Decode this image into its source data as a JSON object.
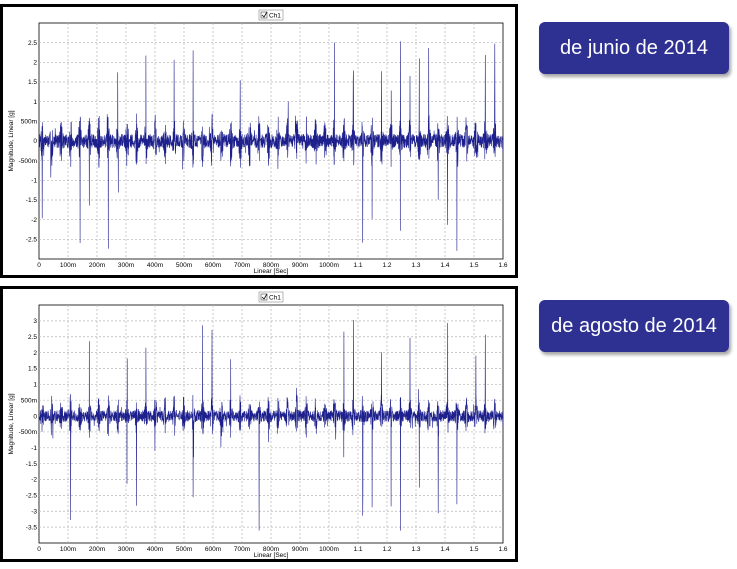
{
  "colors": {
    "signal": "#1c1f8c",
    "label_bg": "#2f3192",
    "grid": "#b5b5b5",
    "frame": "#000000"
  },
  "chart_data": [
    {
      "type": "line",
      "legend": "Ch1",
      "legend_placement": "top-center",
      "xlabel": "Linear [Sec]",
      "ylabel": "Magnitude, Linear [g]",
      "grid": true,
      "xlim": [
        0,
        1.6
      ],
      "ylim": [
        -3,
        3
      ],
      "x_ticks": [
        {
          "v": 0,
          "label": "0"
        },
        {
          "v": 0.1,
          "label": "100m"
        },
        {
          "v": 0.2,
          "label": "200m"
        },
        {
          "v": 0.3,
          "label": "300m"
        },
        {
          "v": 0.4,
          "label": "400m"
        },
        {
          "v": 0.5,
          "label": "500m"
        },
        {
          "v": 0.6,
          "label": "600m"
        },
        {
          "v": 0.7,
          "label": "700m"
        },
        {
          "v": 0.8,
          "label": "800m"
        },
        {
          "v": 0.9,
          "label": "900m"
        },
        {
          "v": 1.0,
          "label": "1000m"
        },
        {
          "v": 1.1,
          "label": "1.1"
        },
        {
          "v": 1.2,
          "label": "1.2"
        },
        {
          "v": 1.3,
          "label": "1.3"
        },
        {
          "v": 1.4,
          "label": "1.4"
        },
        {
          "v": 1.5,
          "label": "1.5"
        },
        {
          "v": 1.6,
          "label": "1.6"
        }
      ],
      "y_ticks": [
        {
          "v": 2.5,
          "label": "2.5"
        },
        {
          "v": 2,
          "label": "2"
        },
        {
          "v": 1.5,
          "label": "1.5"
        },
        {
          "v": 1,
          "label": "1"
        },
        {
          "v": 0.5,
          "label": "500m"
        },
        {
          "v": 0,
          "label": "0"
        },
        {
          "v": -0.5,
          "label": "-500m"
        },
        {
          "v": -1,
          "label": "-1"
        },
        {
          "v": -1.5,
          "label": "-1.5"
        },
        {
          "v": -2,
          "label": "-2"
        },
        {
          "v": -2.5,
          "label": "-2.5"
        }
      ],
      "impact_period_s": 0.0325,
      "peak_max": 2.75,
      "peak_min": -2.9,
      "noise_amplitude": 0.7,
      "seed": 7
    },
    {
      "type": "line",
      "legend": "Ch1",
      "legend_placement": "top-center",
      "xlabel": "Linear [Sec]",
      "ylabel": "Magnitude, Linear [g]",
      "grid": true,
      "xlim": [
        0,
        1.6
      ],
      "ylim": [
        -4,
        3.5
      ],
      "x_ticks": [
        {
          "v": 0,
          "label": "0"
        },
        {
          "v": 0.1,
          "label": "100m"
        },
        {
          "v": 0.2,
          "label": "200m"
        },
        {
          "v": 0.3,
          "label": "300m"
        },
        {
          "v": 0.4,
          "label": "400m"
        },
        {
          "v": 0.5,
          "label": "500m"
        },
        {
          "v": 0.6,
          "label": "600m"
        },
        {
          "v": 0.7,
          "label": "700m"
        },
        {
          "v": 0.8,
          "label": "800m"
        },
        {
          "v": 0.9,
          "label": "900m"
        },
        {
          "v": 1.0,
          "label": "1000m"
        },
        {
          "v": 1.1,
          "label": "1.1"
        },
        {
          "v": 1.2,
          "label": "1.2"
        },
        {
          "v": 1.3,
          "label": "1.3"
        },
        {
          "v": 1.4,
          "label": "1.4"
        },
        {
          "v": 1.5,
          "label": "1.5"
        },
        {
          "v": 1.6,
          "label": "1.6"
        }
      ],
      "y_ticks": [
        {
          "v": 3,
          "label": "3"
        },
        {
          "v": 2.5,
          "label": "2.5"
        },
        {
          "v": 2,
          "label": "2"
        },
        {
          "v": 1.5,
          "label": "1.5"
        },
        {
          "v": 1,
          "label": "1"
        },
        {
          "v": 0.5,
          "label": "500m"
        },
        {
          "v": 0,
          "label": "0"
        },
        {
          "v": -0.5,
          "label": "-500m"
        },
        {
          "v": -1,
          "label": "-1"
        },
        {
          "v": -1.5,
          "label": "-1.5"
        },
        {
          "v": -2,
          "label": "-2"
        },
        {
          "v": -2.5,
          "label": "-2.5"
        },
        {
          "v": -3,
          "label": "-3"
        },
        {
          "v": -3.5,
          "label": "-3.5"
        }
      ],
      "impact_period_s": 0.0325,
      "peak_max": 3.2,
      "peak_min": -3.75,
      "noise_amplitude": 0.7,
      "seed": 21
    }
  ],
  "labels": {
    "top": "de junio de 2014",
    "bottom": "de agosto de 2014"
  }
}
